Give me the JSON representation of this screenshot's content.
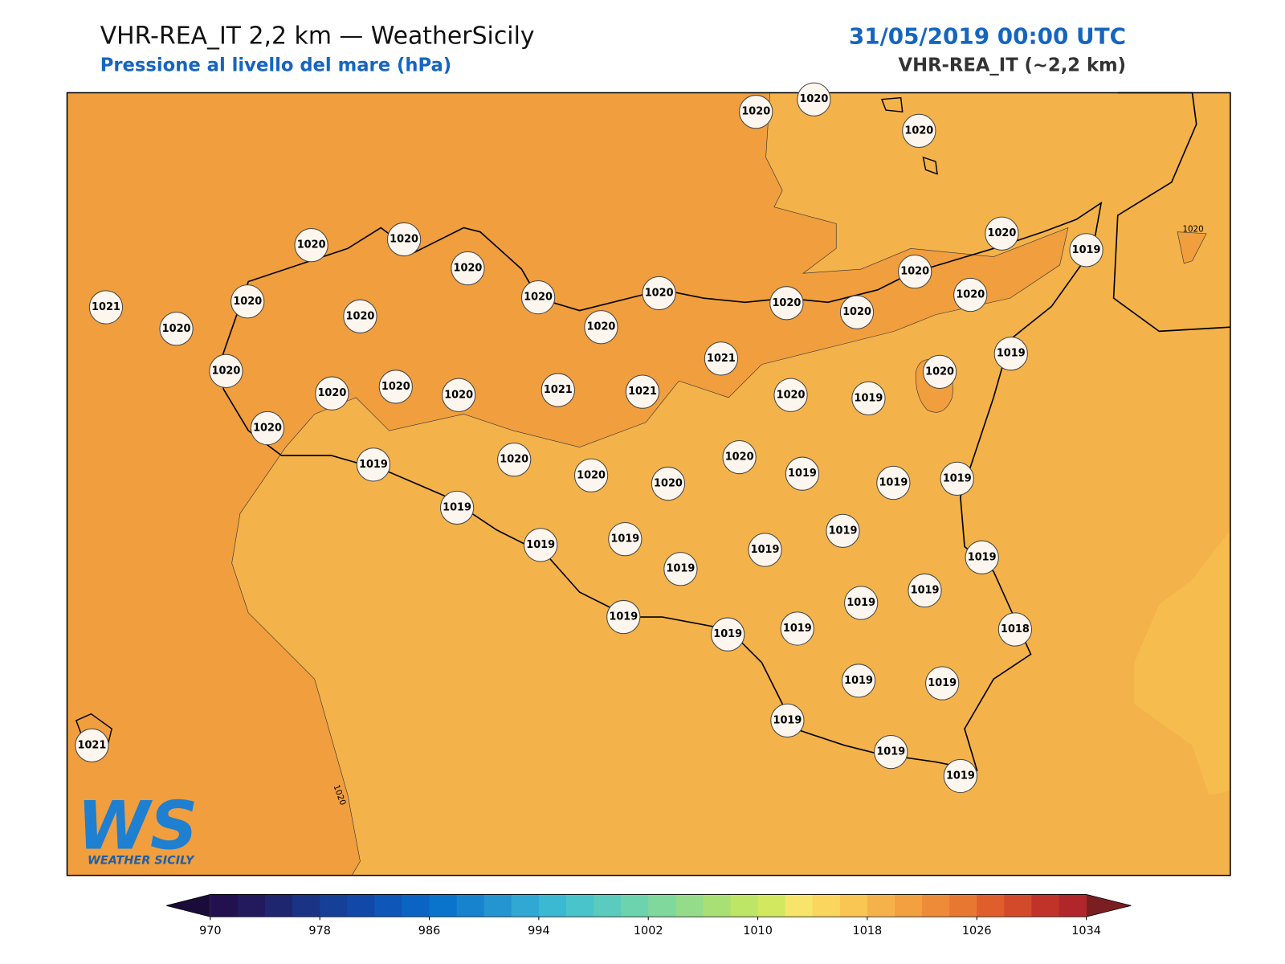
{
  "header": {
    "title": "VHR-REA_IT 2,2 km — WeatherSicily",
    "subtitle": "Pressione al livello del mare (hPa)",
    "date": "31/05/2019 00:00 UTC",
    "model": "VHR-REA_IT (~2,2 km)"
  },
  "map": {
    "stations": [
      1020,
      1020,
      1020,
      1020,
      1020,
      1020,
      1021,
      1020,
      1020,
      1020,
      1020,
      1020,
      1020,
      1020,
      1019,
      1020,
      1020,
      1020,
      1020,
      1021,
      1019,
      1020,
      1020,
      1020,
      1020,
      1020,
      1021,
      1021,
      1020,
      1019,
      1020,
      1019,
      1020,
      1020,
      1020,
      1020,
      1019,
      1019,
      1019,
      1019,
      1019,
      1019,
      1019,
      1019,
      1019,
      1019,
      1019,
      1019,
      1019,
      1019,
      1019,
      1018,
      1019,
      1019,
      1019,
      1019,
      1019,
      1021
    ],
    "contour_labels": [
      1020,
      1020
    ]
  },
  "logo": {
    "mark": "WS",
    "name": "WEATHER SICILY"
  },
  "colorbar": {
    "lim": [
      970,
      1034
    ],
    "ticks": [
      970,
      978,
      986,
      994,
      1002,
      1010,
      1018,
      1026,
      1034
    ],
    "colors": [
      "#23104f",
      "#231a5e",
      "#1f2670",
      "#1b3384",
      "#163f98",
      "#1249a8",
      "#0e56b8",
      "#0b64c4",
      "#0a73cc",
      "#1783cf",
      "#2595d2",
      "#31a7d4",
      "#3bb8d2",
      "#49c4cb",
      "#5bcbbe",
      "#6dd2ae",
      "#80d89c",
      "#94dc8a",
      "#a8e076",
      "#bde566",
      "#d1e85f",
      "#f6e56a",
      "#fad65f",
      "#f9c553",
      "#f6b24a",
      "#f3a040",
      "#ee8b38",
      "#e87732",
      "#df5e2c",
      "#d34a2b",
      "#c13228",
      "#b0262b"
    ],
    "extend_colors": [
      "#1a0b3b",
      "#7a1e22"
    ]
  }
}
